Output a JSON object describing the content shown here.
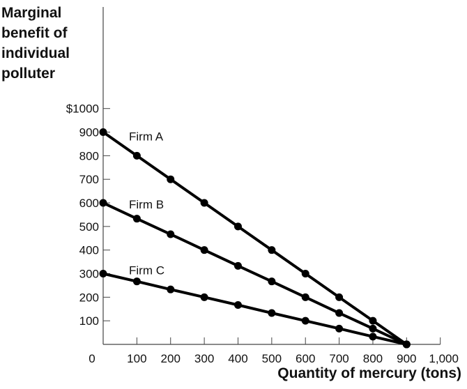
{
  "chart_data": {
    "type": "line",
    "ylabel_lines": [
      "Marginal",
      "benefit of",
      "individual",
      "polluter"
    ],
    "xlabel": "Quantity of mercury (tons)",
    "xlim": [
      0,
      1000
    ],
    "ylim": [
      0,
      1000
    ],
    "x_tick_labels": [
      "0",
      "100",
      "200",
      "300",
      "400",
      "500",
      "600",
      "700",
      "800",
      "900",
      "1,000"
    ],
    "y_tick_labels": [
      "$1000",
      "900",
      "800",
      "700",
      "600",
      "500",
      "400",
      "300",
      "200",
      "100"
    ],
    "x": [
      0,
      100,
      200,
      300,
      400,
      500,
      600,
      700,
      800,
      900
    ],
    "series": [
      {
        "name": "Firm A",
        "values": [
          900,
          800,
          700,
          600,
          500,
          400,
          300,
          200,
          100,
          0
        ]
      },
      {
        "name": "Firm B",
        "values": [
          600,
          533,
          467,
          400,
          333,
          267,
          200,
          133,
          67,
          0
        ]
      },
      {
        "name": "Firm C",
        "values": [
          300,
          267,
          233,
          200,
          167,
          133,
          100,
          67,
          33,
          0
        ]
      }
    ],
    "grid": false,
    "colors": {
      "line": "#000000",
      "marker": "#000000"
    }
  }
}
